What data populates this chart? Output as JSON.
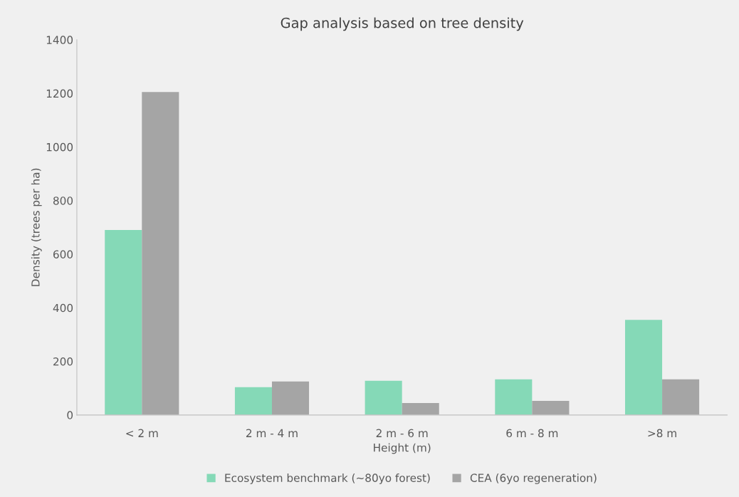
{
  "chart_data": {
    "type": "bar",
    "title": "Gap analysis based on tree density",
    "xlabel": "Height (m)",
    "ylabel": "Density (trees per ha)",
    "categories": [
      "< 2 m",
      "2 m - 4 m",
      "2 m - 6 m",
      "6 m - 8 m",
      ">8 m"
    ],
    "series": [
      {
        "name": "Ecosystem benchmark (~80yo forest)",
        "color": "#85d9b7",
        "values": [
          690,
          104,
          128,
          133,
          355
        ]
      },
      {
        "name": "CEA (6yo regeneration)",
        "color": "#a5a5a5",
        "values": [
          1205,
          125,
          45,
          53,
          133
        ]
      }
    ],
    "ylim": [
      0,
      1400
    ],
    "yticks": [
      0,
      200,
      400,
      600,
      800,
      1000,
      1200,
      1400
    ],
    "grid": false,
    "legend": "bottom"
  }
}
